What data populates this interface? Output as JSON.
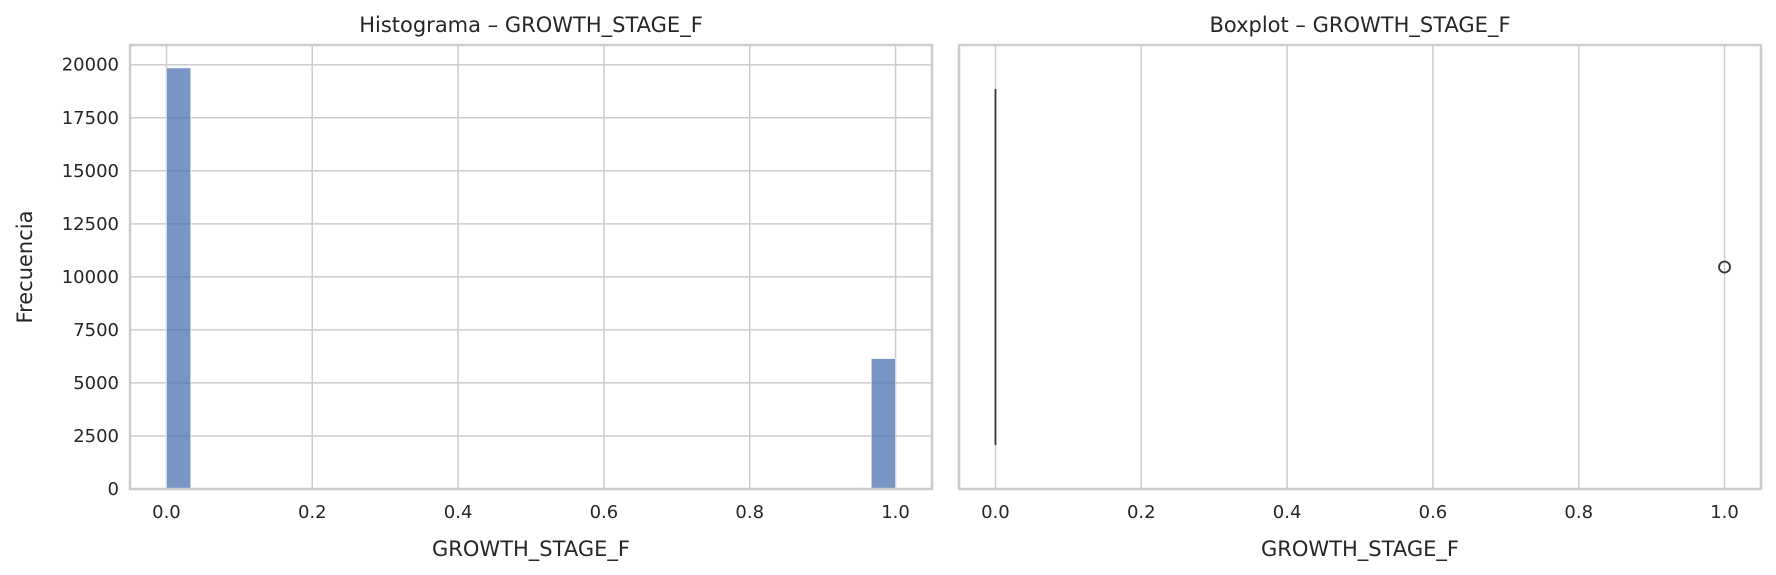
{
  "chart_data": [
    {
      "type": "bar",
      "title": "Histograma – GROWTH_STAGE_F",
      "xlabel": "GROWTH_STAGE_F",
      "ylabel": "Frecuencia",
      "xlim": [
        -0.05,
        1.05
      ],
      "ylim": [
        0,
        20930
      ],
      "xticks": [
        0.0,
        0.2,
        0.4,
        0.6,
        0.8,
        1.0
      ],
      "xtick_labels": [
        "0.0",
        "0.2",
        "0.4",
        "0.6",
        "0.8",
        "1.0"
      ],
      "yticks": [
        0,
        2500,
        5000,
        7500,
        10000,
        12500,
        15000,
        17500,
        20000
      ],
      "ytick_labels": [
        "0",
        "2500",
        "5000",
        "7500",
        "10000",
        "12500",
        "15000",
        "17500",
        "20000"
      ],
      "bins": [
        {
          "x0": 0.0,
          "x1": 0.0333,
          "value": 19850
        },
        {
          "x0": 0.9667,
          "x1": 1.0,
          "value": 6150
        }
      ],
      "bar_color": "#4c72b0",
      "grid": true
    },
    {
      "type": "boxplot",
      "title": "Boxplot – GROWTH_STAGE_F",
      "xlabel": "GROWTH_STAGE_F",
      "xlim": [
        -0.05,
        1.05
      ],
      "xticks": [
        0.0,
        0.2,
        0.4,
        0.6,
        0.8,
        1.0
      ],
      "xtick_labels": [
        "0.0",
        "0.2",
        "0.4",
        "0.6",
        "0.8",
        "1.0"
      ],
      "box": {
        "q1": 0.0,
        "median": 0.0,
        "q3": 0.0,
        "whisker_low": 0.0,
        "whisker_high": 0.0
      },
      "outliers": [
        1.0
      ],
      "grid": true
    }
  ]
}
